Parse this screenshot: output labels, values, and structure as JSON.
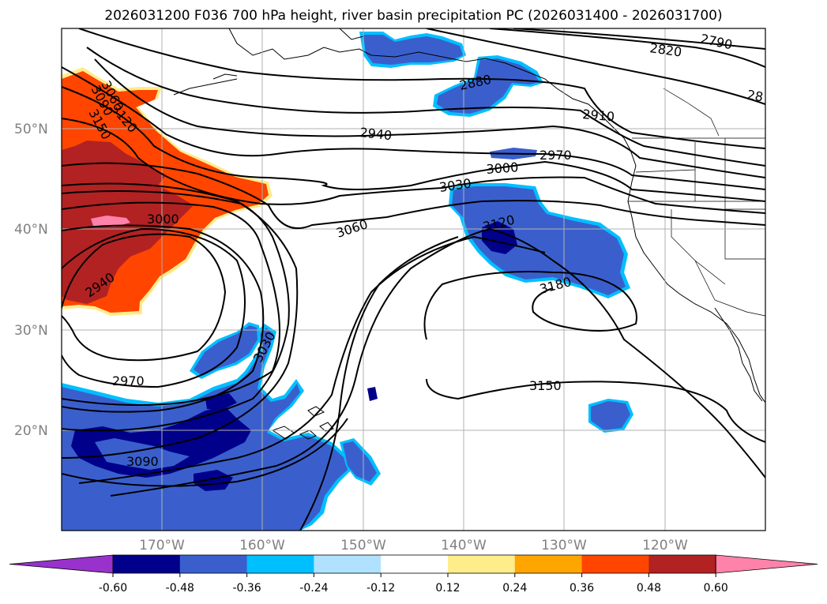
{
  "title": "2026031200 F036 700 hPa height, river basin precipitation PC (2026031400 - 2026031700)",
  "lat_labels": [
    "50°N",
    "40°N",
    "30°N",
    "20°N"
  ],
  "lon_labels": [
    "170°W",
    "160°W",
    "150°W",
    "140°W",
    "130°W",
    "120°W"
  ],
  "contour_labels": [
    "2790",
    "2820",
    "28",
    "2880",
    "2910",
    "2940",
    "2970",
    "3000",
    "3030",
    "3060",
    "3120",
    "3180",
    "3150",
    "3060",
    "3090",
    "3120",
    "3150",
    "3000",
    "2940",
    "2970",
    "3090",
    "3030"
  ],
  "colorbar": {
    "tick_labels": [
      "-0.60",
      "-0.48",
      "-0.36",
      "-0.24",
      "-0.12",
      "0.12",
      "0.24",
      "0.36",
      "0.48",
      "0.60"
    ],
    "colors": [
      "#9932cc",
      "#00008b",
      "#3a5fcd",
      "#00bfff",
      "#b0e2ff",
      "#ffffff",
      "#ffec8b",
      "#ffa500",
      "#ff4500",
      "#b22222",
      "#ff82ab"
    ]
  }
}
